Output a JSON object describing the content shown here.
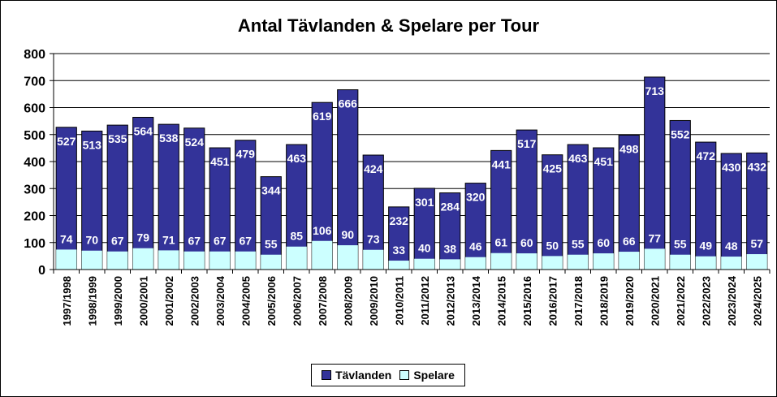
{
  "chart_data": {
    "type": "bar",
    "stacked": "overlap",
    "title": "Antal Tävlanden & Spelare per Tour",
    "categories": [
      "1997/1998",
      "1998/1999",
      "1999/2000",
      "2000/2001",
      "2001/2002",
      "2002/2003",
      "2003/2004",
      "2004/2005",
      "2005/2006",
      "2006/2007",
      "2007/2008",
      "2008/2009",
      "2009/2010",
      "2010/2011",
      "2011/2012",
      "2012/2013",
      "2013/2014",
      "2014/2015",
      "2015/2016",
      "2016/2017",
      "2017/2018",
      "2018/2019",
      "2019/2020",
      "2020/2021",
      "2021/2022",
      "2022/2023",
      "2023/2024",
      "2024/2025"
    ],
    "series": [
      {
        "name": "Tävlanden",
        "color": "#333399",
        "values": [
          527,
          513,
          535,
          564,
          538,
          524,
          451,
          479,
          344,
          463,
          619,
          666,
          424,
          232,
          301,
          284,
          320,
          441,
          517,
          425,
          463,
          451,
          498,
          713,
          552,
          472,
          430,
          432
        ]
      },
      {
        "name": "Spelare",
        "color": "#ccffff",
        "values": [
          74,
          70,
          67,
          79,
          71,
          67,
          67,
          67,
          55,
          85,
          106,
          90,
          73,
          33,
          40,
          38,
          46,
          61,
          60,
          50,
          55,
          60,
          66,
          77,
          55,
          49,
          48,
          57
        ]
      }
    ],
    "yticks": [
      "0",
      "100",
      "200",
      "300",
      "400",
      "500",
      "600",
      "700",
      "800"
    ],
    "ylim": [
      0,
      800
    ],
    "grid": true,
    "legend": "bottom"
  }
}
